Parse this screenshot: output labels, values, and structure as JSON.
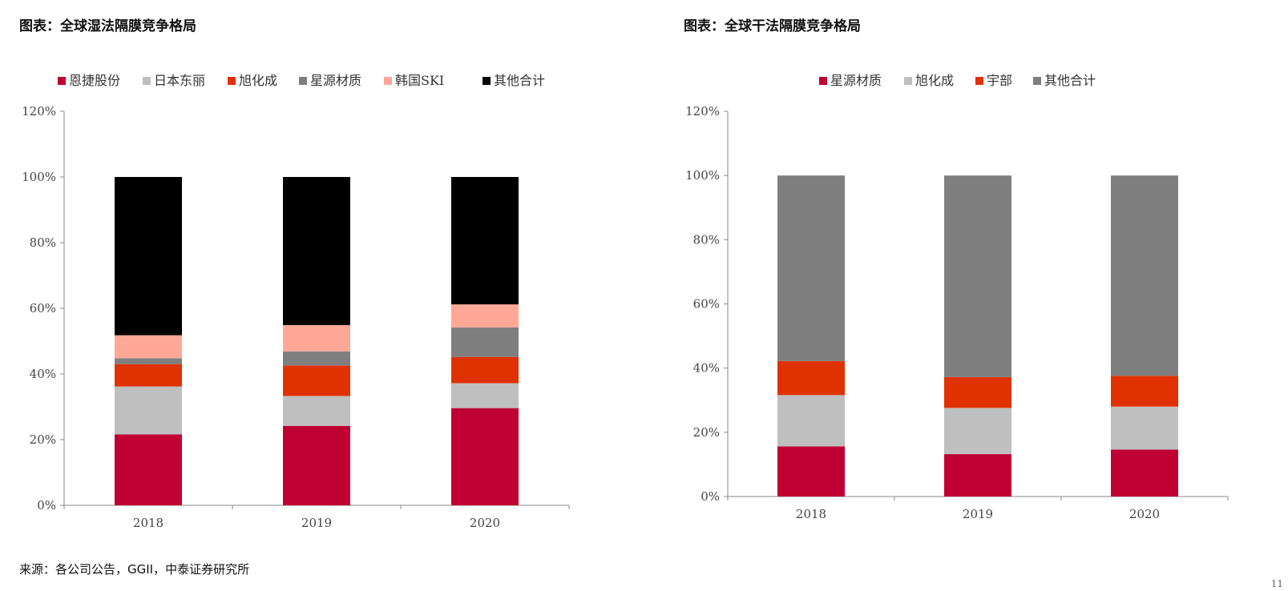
{
  "chart_data": [
    {
      "type": "bar",
      "stacked": true,
      "title": "图表：全球湿法隔膜竞争格局",
      "categories": [
        "2018",
        "2019",
        "2020"
      ],
      "ylim": [
        0,
        120
      ],
      "yticks": [
        "0%",
        "20%",
        "40%",
        "60%",
        "80%",
        "100%",
        "120%"
      ],
      "legend_position": "top",
      "series": [
        {
          "name": "恩捷股份",
          "color": "#c00033",
          "values": [
            21.6,
            24.2,
            29.6
          ]
        },
        {
          "name": "日本东丽",
          "color": "#bfbfbf",
          "values": [
            14.6,
            9.1,
            7.6
          ]
        },
        {
          "name": "旭化成",
          "color": "#e03200",
          "values": [
            6.8,
            9.3,
            8.0
          ]
        },
        {
          "name": "星源材质",
          "color": "#7f7f7f",
          "values": [
            1.8,
            4.3,
            9.0
          ]
        },
        {
          "name": "韩国SKI",
          "color": "#ffa897",
          "values": [
            7.0,
            8.0,
            7.0
          ]
        },
        {
          "name": "其他合计",
          "color": "#000000",
          "values": [
            48.2,
            45.1,
            38.8
          ]
        }
      ]
    },
    {
      "type": "bar",
      "stacked": true,
      "title": "图表：全球干法隔膜竞争格局",
      "categories": [
        "2018",
        "2019",
        "2020"
      ],
      "ylim": [
        0,
        120
      ],
      "yticks": [
        "0%",
        "20%",
        "40%",
        "60%",
        "80%",
        "100%",
        "120%"
      ],
      "legend_position": "top",
      "series": [
        {
          "name": "星源材质",
          "color": "#c00033",
          "values": [
            15.6,
            13.2,
            14.6
          ]
        },
        {
          "name": "旭化成",
          "color": "#bfbfbf",
          "values": [
            16.0,
            14.4,
            13.4
          ]
        },
        {
          "name": "宇部",
          "color": "#e03200",
          "values": [
            10.6,
            9.6,
            9.6
          ]
        },
        {
          "name": "其他合计",
          "color": "#7f7f7f",
          "values": [
            57.8,
            62.8,
            62.4
          ]
        }
      ]
    }
  ],
  "source": "来源：各公司公告，GGII，中泰证券研究所",
  "page_number": "11"
}
